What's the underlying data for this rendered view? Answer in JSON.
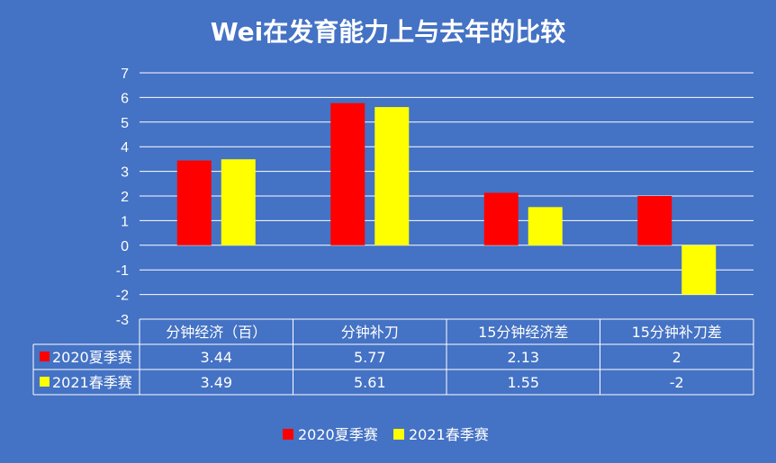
{
  "chart_data": {
    "type": "bar",
    "title": "Wei在发育能力上与去年的比较",
    "categories": [
      "分钟经济（百）",
      "分钟补刀",
      "15分钟经济差",
      "15分钟补刀差"
    ],
    "series": [
      {
        "name": "2020夏季赛",
        "values": [
          3.44,
          5.77,
          2.13,
          2
        ],
        "labels": [
          "3.44",
          "5.77",
          "2.13",
          "2"
        ],
        "color": "#ff0000"
      },
      {
        "name": "2021春季赛",
        "values": [
          3.49,
          5.61,
          1.55,
          -2
        ],
        "labels": [
          "3.49",
          "5.61",
          "1.55",
          "-2"
        ],
        "color": "#ffff00"
      }
    ],
    "ylim": [
      -3,
      7
    ],
    "yticks": [
      "-3",
      "-2",
      "-1",
      "0",
      "1",
      "2",
      "3",
      "4",
      "5",
      "6",
      "7"
    ],
    "grid": true,
    "legend_position": "bottom",
    "data_table": true,
    "background_color": "#4472c4",
    "grid_color": "#ffffff",
    "text_color": "#ffffff"
  }
}
